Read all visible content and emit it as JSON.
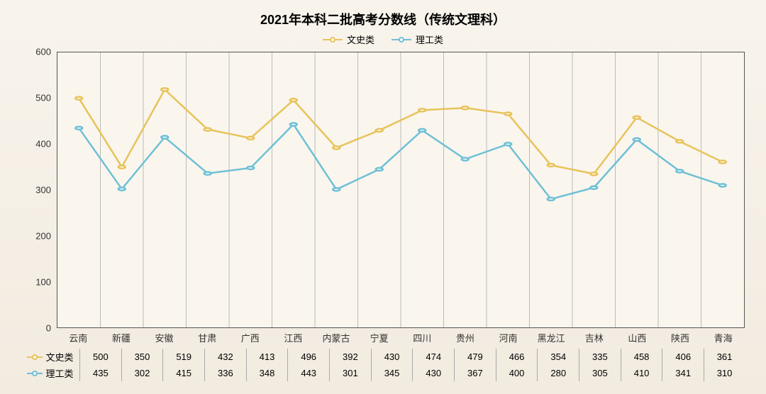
{
  "title": "2021年本科二批高考分数线（传统文理科）",
  "title_fontsize": 18,
  "background_gradient": [
    "#f8f4ec",
    "#f2ebe0"
  ],
  "plot_background": "#faf6ee",
  "axis_color": "#555555",
  "grid_color": "#bbbbbb",
  "text_color": "#333333",
  "chart": {
    "type": "line",
    "categories": [
      "云南",
      "新疆",
      "安徽",
      "甘肃",
      "广西",
      "江西",
      "内蒙古",
      "宁夏",
      "四川",
      "贵州",
      "河南",
      "黑龙江",
      "吉林",
      "山西",
      "陕西",
      "青海"
    ],
    "ylim": [
      0,
      600
    ],
    "ytick_step": 100,
    "yticks": [
      0,
      100,
      200,
      300,
      400,
      500,
      600
    ],
    "x_tick_fontsize": 13,
    "y_tick_fontsize": 13,
    "line_width": 2.5,
    "marker_radius": 5,
    "marker_fill": "#ffffff",
    "series": [
      {
        "name": "文史类",
        "color": "#e8c35a",
        "values": [
          500,
          350,
          519,
          432,
          413,
          496,
          392,
          430,
          474,
          479,
          466,
          354,
          335,
          458,
          406,
          361
        ]
      },
      {
        "name": "理工类",
        "color": "#6fc0d6",
        "values": [
          435,
          302,
          415,
          336,
          348,
          443,
          301,
          345,
          430,
          367,
          400,
          280,
          305,
          410,
          341,
          310
        ]
      }
    ]
  }
}
